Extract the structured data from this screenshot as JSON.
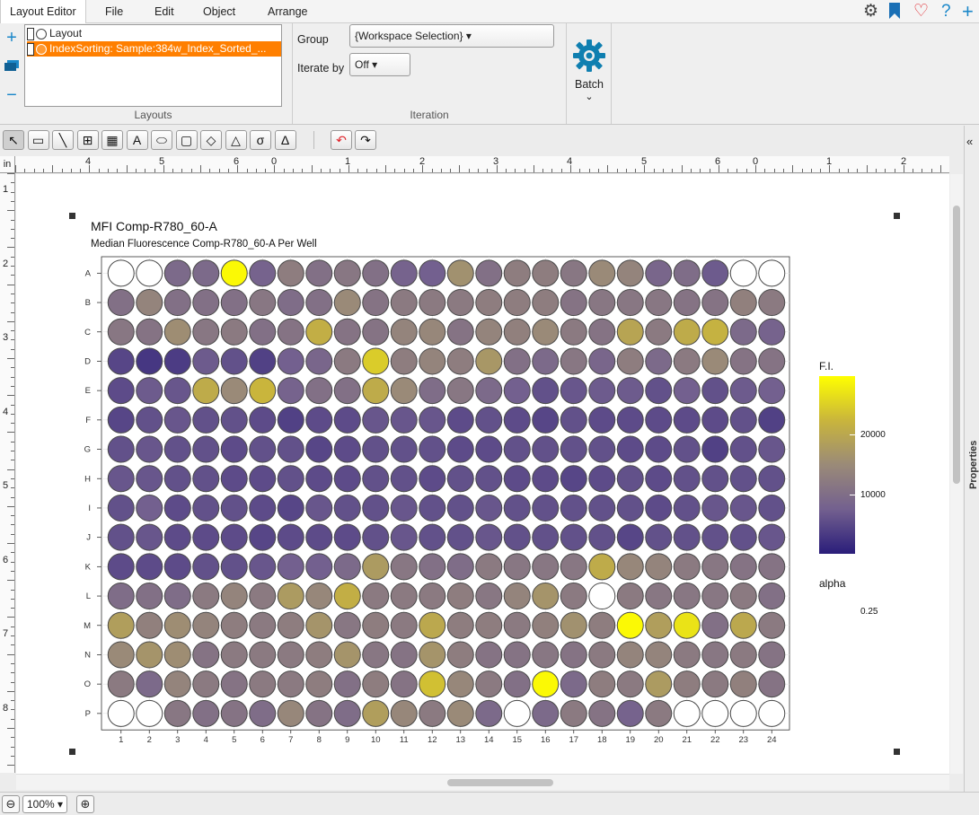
{
  "menu": {
    "items": [
      "Layout Editor",
      "File",
      "Edit",
      "Object",
      "Arrange"
    ],
    "active": "Layout Editor"
  },
  "top_icons": [
    "gear-icon",
    "bookmark-icon",
    "heart-icon",
    "help-icon",
    "plus-icon"
  ],
  "ribbon": {
    "layouts": {
      "items": [
        {
          "label": "Layout",
          "selected": false
        },
        {
          "label": "IndexSorting: Sample:384w_Index_Sorted_...",
          "selected": true
        }
      ],
      "group_label": "Layouts"
    },
    "iteration": {
      "group_label": "Group",
      "group_value": "{Workspace Selection}",
      "iterate_label": "Iterate by",
      "iterate_value": "Off",
      "section_label": "Iteration"
    },
    "batch": {
      "label": "Batch"
    }
  },
  "toolbar": {
    "tools": [
      {
        "name": "select-tool",
        "glyph": "↖"
      },
      {
        "name": "rectangle-tool",
        "glyph": "▭"
      },
      {
        "name": "line-tool",
        "glyph": "╲"
      },
      {
        "name": "table-tool",
        "glyph": "⊞"
      },
      {
        "name": "grid-tool",
        "glyph": "▦"
      },
      {
        "name": "text-tool",
        "glyph": "A"
      },
      {
        "name": "ellipse-tool",
        "glyph": "⬭"
      },
      {
        "name": "rounded-rect-tool",
        "glyph": "▢"
      },
      {
        "name": "diamond-tool",
        "glyph": "◇"
      },
      {
        "name": "triangle-tool",
        "glyph": "△"
      },
      {
        "name": "sigma-tool",
        "glyph": "σ"
      },
      {
        "name": "delta-tool",
        "glyph": "Δ"
      }
    ],
    "undo_glyph": "↶",
    "redo_glyph": "↷"
  },
  "ruler": {
    "unit": "in",
    "top_labels": [
      {
        "text": "4",
        "x": 78
      },
      {
        "text": "5",
        "x": 160
      },
      {
        "text": "6",
        "x": 243
      },
      {
        "text": "0",
        "x": 285
      },
      {
        "text": "1",
        "x": 367
      },
      {
        "text": "2",
        "x": 450
      },
      {
        "text": "3",
        "x": 532
      },
      {
        "text": "4",
        "x": 614
      },
      {
        "text": "5",
        "x": 697
      },
      {
        "text": "6",
        "x": 779
      },
      {
        "text": "0",
        "x": 821
      },
      {
        "text": "1",
        "x": 903
      },
      {
        "text": "2",
        "x": 986
      }
    ],
    "left_labels": [
      "1",
      "2",
      "3",
      "4",
      "5",
      "6",
      "7",
      "8"
    ]
  },
  "plot": {
    "title": "MFI Comp-R780_60-A",
    "subtitle": "Median Fluorescence Comp-R780_60-A Per Well",
    "legend_title": "F.I.",
    "legend_ticks": [
      "20000",
      "10000"
    ],
    "alpha_title": "alpha",
    "alpha_value": "0.25"
  },
  "chart_data": {
    "type": "heatmap",
    "title": "MFI Comp-R780_60-A",
    "subtitle": "Median Fluorescence Comp-R780_60-A Per Well",
    "rows": [
      "A",
      "B",
      "C",
      "D",
      "E",
      "F",
      "G",
      "H",
      "I",
      "J",
      "K",
      "L",
      "M",
      "N",
      "O",
      "P"
    ],
    "columns": [
      "1",
      "2",
      "3",
      "4",
      "5",
      "6",
      "7",
      "8",
      "9",
      "10",
      "11",
      "12",
      "13",
      "14",
      "15",
      "16",
      "17",
      "18",
      "19",
      "20",
      "21",
      "22",
      "23",
      "24"
    ],
    "legend_title": "F.I.",
    "legend_ticks": [
      20000,
      10000
    ],
    "color_scale": [
      "#2a1d7a",
      "#73608f",
      "#9a8a78",
      "#c9b53c",
      "#ffff00"
    ],
    "value_range": [
      3000,
      29000
    ],
    "alpha": 0.25,
    "values": [
      [
        null,
        null,
        11000,
        11000,
        28500,
        10000,
        14000,
        12000,
        13000,
        12000,
        10000,
        9500,
        17000,
        12000,
        14000,
        14000,
        13000,
        16000,
        15000,
        10500,
        11500,
        9000,
        null,
        null
      ],
      [
        12000,
        15000,
        12000,
        12000,
        12000,
        13000,
        11500,
        12000,
        16000,
        12500,
        13500,
        13500,
        13500,
        14000,
        14000,
        14000,
        12500,
        13000,
        13000,
        13000,
        12500,
        12500,
        14500,
        13500
      ],
      [
        13000,
        12500,
        16500,
        13000,
        13500,
        12000,
        12500,
        21500,
        12500,
        12500,
        15000,
        15500,
        12500,
        15000,
        14500,
        16000,
        13500,
        12500,
        20000,
        13500,
        21000,
        22000,
        11000,
        10000
      ],
      [
        7000,
        5500,
        6000,
        9000,
        8000,
        6500,
        9500,
        10500,
        13500,
        24500,
        14000,
        15000,
        14000,
        18000,
        12000,
        11000,
        13000,
        10500,
        14000,
        11000,
        13500,
        16000,
        12500,
        12500
      ],
      [
        7500,
        9000,
        8500,
        21000,
        16000,
        22500,
        10000,
        12000,
        12000,
        21000,
        16000,
        11500,
        13000,
        11000,
        9500,
        8000,
        8500,
        9000,
        9000,
        8000,
        9500,
        8000,
        9000,
        9500
      ],
      [
        7000,
        8000,
        8500,
        8000,
        8000,
        7500,
        6500,
        7500,
        7500,
        8500,
        8500,
        8500,
        7500,
        8000,
        7500,
        7000,
        8000,
        7500,
        7500,
        7500,
        7500,
        7500,
        8000,
        6500
      ],
      [
        8000,
        8500,
        8000,
        8000,
        7500,
        8000,
        8000,
        7000,
        7500,
        8000,
        8000,
        8000,
        7500,
        7500,
        8000,
        8000,
        8000,
        8000,
        7500,
        7500,
        8000,
        6500,
        8000,
        8500
      ],
      [
        8500,
        8500,
        8000,
        8000,
        7500,
        7500,
        8000,
        7500,
        7500,
        8000,
        8000,
        7500,
        8000,
        8000,
        7500,
        7500,
        7000,
        7500,
        8000,
        7500,
        8000,
        8000,
        8000,
        8000
      ],
      [
        8000,
        9500,
        7500,
        8000,
        8000,
        7500,
        7000,
        8500,
        8000,
        8000,
        8500,
        8000,
        8000,
        8500,
        8000,
        8000,
        8000,
        8000,
        8000,
        7500,
        8000,
        8500,
        8500,
        8000
      ],
      [
        8000,
        8500,
        7500,
        7500,
        7500,
        7000,
        7500,
        7500,
        7500,
        8000,
        8500,
        8000,
        8000,
        8500,
        8000,
        8000,
        8000,
        8000,
        7000,
        8000,
        8000,
        8000,
        8000,
        8500
      ],
      [
        7500,
        7500,
        7500,
        8000,
        8000,
        8500,
        9500,
        9500,
        11000,
        18500,
        13000,
        12000,
        11500,
        13500,
        13000,
        13000,
        13000,
        21000,
        15500,
        15000,
        13500,
        13000,
        12500,
        12500
      ],
      [
        11500,
        12000,
        11500,
        13500,
        15000,
        13500,
        18500,
        15500,
        21500,
        13500,
        13500,
        13500,
        14000,
        13000,
        15000,
        17500,
        13500,
        null,
        13500,
        13000,
        13000,
        13000,
        13500,
        12000
      ],
      [
        19000,
        14500,
        16500,
        15000,
        14000,
        13500,
        14000,
        17500,
        13000,
        14000,
        13500,
        20500,
        14000,
        14000,
        13500,
        14500,
        17000,
        14000,
        28500,
        19000,
        26500,
        12000,
        20500,
        13500
      ],
      [
        16000,
        17500,
        16500,
        12500,
        13500,
        13500,
        13500,
        14000,
        17500,
        13000,
        12500,
        17500,
        14000,
        12500,
        12500,
        13000,
        12500,
        13500,
        15000,
        15000,
        13500,
        13000,
        13500,
        12500
      ],
      [
        13500,
        11000,
        15000,
        13500,
        12500,
        13500,
        13500,
        14000,
        12000,
        14000,
        12500,
        23500,
        15500,
        13500,
        12000,
        28500,
        11000,
        14000,
        13500,
        18500,
        14000,
        13500,
        14500,
        12500
      ],
      [
        null,
        null,
        13000,
        12000,
        12500,
        11500,
        15500,
        12500,
        11500,
        19000,
        15500,
        13500,
        16000,
        11000,
        null,
        11000,
        13500,
        12500,
        10000,
        13500,
        null,
        null,
        null,
        null
      ]
    ]
  },
  "statusbar": {
    "zoom_value": "100%"
  }
}
